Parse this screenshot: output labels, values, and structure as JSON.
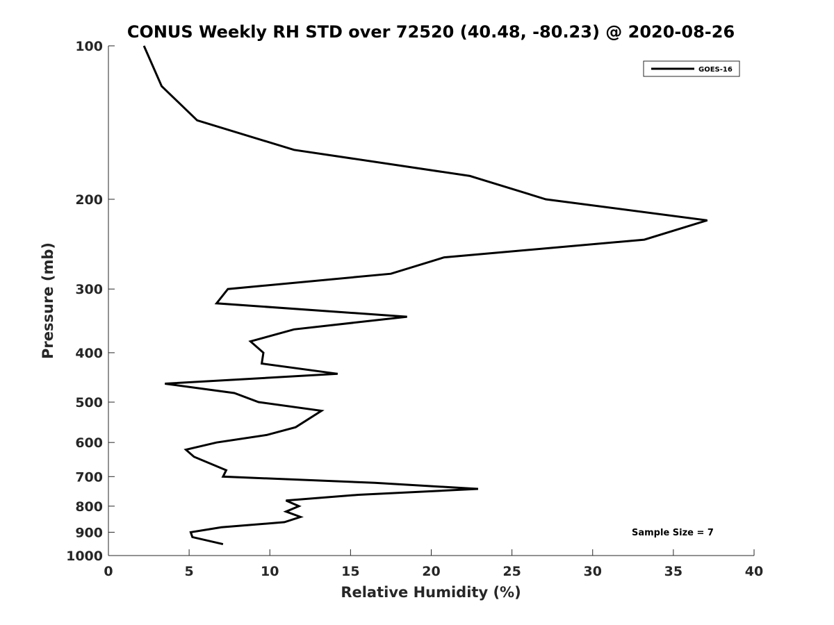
{
  "chart_data": {
    "type": "line",
    "title": "CONUS Weekly RH STD over 72520 (40.48, -80.23) @ 2020-08-26",
    "xlabel": "Relative Humidity (%)",
    "ylabel": "Pressure (mb)",
    "xlim": [
      0,
      40
    ],
    "ylim": [
      100,
      1000
    ],
    "yscale": "log",
    "y_reversed": true,
    "grid": false,
    "xticks": [
      0,
      5,
      10,
      15,
      20,
      25,
      30,
      35,
      40
    ],
    "yticks": [
      100,
      200,
      300,
      400,
      500,
      600,
      700,
      800,
      900,
      1000
    ],
    "legend": {
      "position": "top-right",
      "entries": [
        "GOES-16"
      ]
    },
    "annotation": "Sample Size = 7",
    "series": [
      {
        "name": "GOES-16",
        "color": "#000000",
        "points": [
          [
            2.2,
            100
          ],
          [
            3.3,
            120
          ],
          [
            5.5,
            140
          ],
          [
            11.5,
            160
          ],
          [
            22.4,
            180
          ],
          [
            27.1,
            200
          ],
          [
            37.1,
            220
          ],
          [
            33.2,
            240
          ],
          [
            20.8,
            260
          ],
          [
            17.5,
            280
          ],
          [
            7.4,
            300
          ],
          [
            6.7,
            320
          ],
          [
            18.5,
            340
          ],
          [
            11.5,
            360
          ],
          [
            8.8,
            380
          ],
          [
            9.6,
            400
          ],
          [
            9.5,
            420
          ],
          [
            14.2,
            440
          ],
          [
            3.5,
            460
          ],
          [
            7.8,
            480
          ],
          [
            9.3,
            500
          ],
          [
            13.2,
            520
          ],
          [
            11.6,
            560
          ],
          [
            9.8,
            580
          ],
          [
            6.7,
            600
          ],
          [
            4.8,
            620
          ],
          [
            5.3,
            640
          ],
          [
            7.3,
            680
          ],
          [
            7.1,
            700
          ],
          [
            16.5,
            720
          ],
          [
            22.9,
            740
          ],
          [
            15.5,
            760
          ],
          [
            11.0,
            780
          ],
          [
            11.8,
            800
          ],
          [
            11.0,
            820
          ],
          [
            11.9,
            840
          ],
          [
            10.9,
            860
          ],
          [
            7.0,
            880
          ],
          [
            5.1,
            900
          ],
          [
            5.2,
            920
          ],
          [
            7.1,
            950
          ]
        ]
      }
    ]
  }
}
